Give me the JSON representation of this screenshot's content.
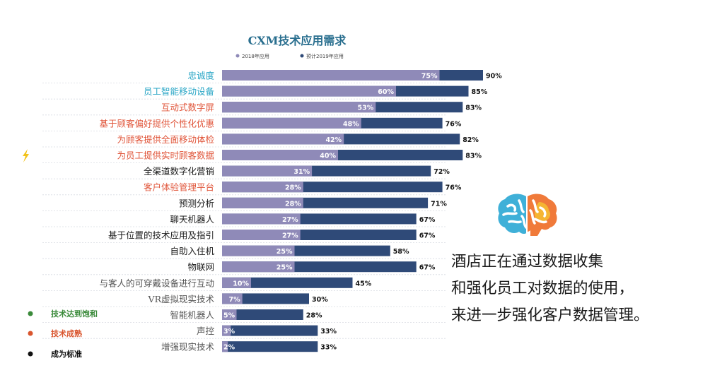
{
  "chart_data": {
    "type": "bar",
    "title": "CXM技术应用需求",
    "series": [
      {
        "name": "2018年应用",
        "color": "#8f8ab8"
      },
      {
        "name": "预计2019年应用",
        "color": "#2f4a78"
      }
    ],
    "categories": [
      {
        "label": "忠诚度",
        "category_color": "#2aa6c6",
        "v2018": 75,
        "v2019": 90
      },
      {
        "label": "员工智能移动设备",
        "category_color": "#2aa6c6",
        "v2018": 60,
        "v2019": 85
      },
      {
        "label": "互动式数字屏",
        "category_color": "#e0553a",
        "v2018": 53,
        "v2019": 83
      },
      {
        "label": "基于顾客偏好提供个性化优惠",
        "category_color": "#e0553a",
        "v2018": 48,
        "v2019": 76
      },
      {
        "label": "为顾客提供全面移动体检",
        "category_color": "#e0553a",
        "v2018": 42,
        "v2019": 82
      },
      {
        "label": "为员工提供实时顾客数据",
        "category_color": "#e0553a",
        "v2018": 40,
        "v2019": 83
      },
      {
        "label": "全渠道数字化营销",
        "category_color": "#1a1a1a",
        "v2018": 31,
        "v2019": 72
      },
      {
        "label": "客户体验管理平台",
        "category_color": "#e0553a",
        "v2018": 28,
        "v2019": 76
      },
      {
        "label": "预测分析",
        "category_color": "#1a1a1a",
        "v2018": 28,
        "v2019": 71
      },
      {
        "label": "聊天机器人",
        "category_color": "#1a1a1a",
        "v2018": 27,
        "v2019": 67
      },
      {
        "label": "基于位置的技术应用及指引",
        "category_color": "#1a1a1a",
        "v2018": 27,
        "v2019": 67
      },
      {
        "label": "自助入住机",
        "category_color": "#1a1a1a",
        "v2018": 25,
        "v2019": 58
      },
      {
        "label": "物联网",
        "category_color": "#1a1a1a",
        "v2018": 25,
        "v2019": 67
      },
      {
        "label": "与客人的可穿戴设备进行互动",
        "category_color": "#555555",
        "v2018": 10,
        "v2019": 45
      },
      {
        "label": "VR虚拟现实技术",
        "category_color": "#555555",
        "v2018": 7,
        "v2019": 30
      },
      {
        "label": "智能机器人",
        "category_color": "#555555",
        "v2018": 5,
        "v2019": 28
      },
      {
        "label": "声控",
        "category_color": "#555555",
        "v2018": 3,
        "v2019": 33
      },
      {
        "label": "增强现实技术",
        "category_color": "#555555",
        "v2018": 2,
        "v2019": 33
      }
    ],
    "value_suffix": "%",
    "xlim": [
      0,
      100
    ],
    "legend_position": "top",
    "status_legend": [
      {
        "label": "技术达到饱和",
        "color": "#3a8a3a"
      },
      {
        "label": "技术成熟",
        "color": "#d9552e"
      },
      {
        "label": "成为标准",
        "color": "#111111"
      }
    ],
    "flagged_category_icon": "lightning-icon"
  },
  "caption": {
    "lines": [
      "酒店正在通过数据收集",
      "和强化员工对数据的使用，",
      "来进一步强化客户数据管理。"
    ]
  },
  "decor": {
    "brain_icon": "brain-icon"
  }
}
